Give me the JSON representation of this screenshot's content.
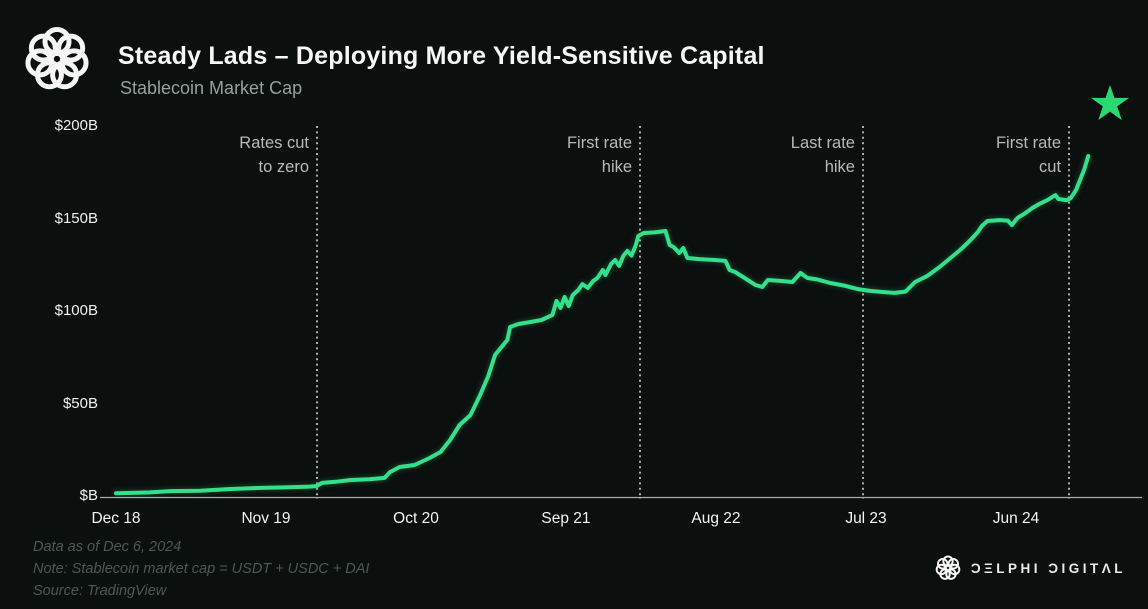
{
  "header": {
    "title": "Steady Lads – Deploying More Yield-Sensitive Capital",
    "subtitle": "Stablecoin Market Cap"
  },
  "footer": {
    "data_as_of": "Data as of Dec 6, 2024",
    "note": "Note: Stablecoin market cap = USDT + USDC + DAI",
    "source": "Source: TradingView"
  },
  "brand": {
    "name": "DELPHI DIGITAL",
    "wordmark_display": "ƆΞLPHI ƆIGITΛL"
  },
  "colors": {
    "background": "#0b0f0d",
    "line": "#35e08c",
    "star": "#2bd973",
    "event_line": "#d2d5d3",
    "baseline": "#a9ada9",
    "title": "#f6f7f6",
    "subtitle": "#97a09b",
    "axis_label": "#eff1ef",
    "annotation": "#b5bab8",
    "footer_text": "#4f5954",
    "logo": "#f4f5f4"
  },
  "chart_data": {
    "type": "line",
    "title": "Steady Lads – Deploying More Yield-Sensitive Capital",
    "subtitle": "Stablecoin Market Cap",
    "unit": "$B",
    "x_unit": "months since Dec 2018",
    "x_ticks": [
      "Dec 18",
      "Nov 19",
      "Oct 20",
      "Sep 21",
      "Aug 22",
      "Jul 23",
      "Jun 24"
    ],
    "y_ticks": [
      "$200B",
      "$150B",
      "$100B",
      "$50B",
      "$B"
    ],
    "y_tick_values": [
      200,
      150,
      100,
      50,
      0
    ],
    "ylim": [
      0,
      200
    ],
    "grid": false,
    "legend": false,
    "events": [
      {
        "id": "rates-cut-to-zero",
        "line1": "Rates cut",
        "line2": "to zero",
        "t": 14.74,
        "date": "Mar 2020"
      },
      {
        "id": "first-rate-hike",
        "line1": "First rate",
        "line2": "hike",
        "t": 38.43,
        "date": "Mar 2022"
      },
      {
        "id": "last-rate-hike",
        "line1": "Last rate",
        "line2": "hike",
        "t": 54.78,
        "date": "Jul 2023"
      },
      {
        "id": "first-rate-cut",
        "line1": "First rate",
        "line2": "cut",
        "t": 69.89,
        "date": "Sep 2024"
      }
    ],
    "series": [
      {
        "name": "Stablecoin Market Cap (USDT + USDC + DAI)",
        "color": "#35e08c",
        "points": [
          [
            0,
            2
          ],
          [
            2.5,
            2.5
          ],
          [
            4,
            3.2
          ],
          [
            6.2,
            3.4
          ],
          [
            8.4,
            4.3
          ],
          [
            10.6,
            4.9
          ],
          [
            12.4,
            5.2
          ],
          [
            14.2,
            5.6
          ],
          [
            14.7,
            5.9
          ],
          [
            15.1,
            7.6
          ],
          [
            16.1,
            8.2
          ],
          [
            17.2,
            9.2
          ],
          [
            18.6,
            9.6
          ],
          [
            19.7,
            10.3
          ],
          [
            20.1,
            13.5
          ],
          [
            20.8,
            16.2
          ],
          [
            21.9,
            17.3
          ],
          [
            23,
            21.1
          ],
          [
            23.8,
            24.3
          ],
          [
            24.5,
            30.8
          ],
          [
            25.2,
            38.9
          ],
          [
            26,
            44.3
          ],
          [
            26.7,
            55.1
          ],
          [
            27.3,
            65.4
          ],
          [
            27.8,
            76.8
          ],
          [
            28.4,
            82.2
          ],
          [
            28.7,
            84.9
          ],
          [
            28.9,
            91.9
          ],
          [
            29.5,
            93.5
          ],
          [
            30.4,
            94.6
          ],
          [
            31.2,
            95.7
          ],
          [
            32,
            98.4
          ],
          [
            32.3,
            106
          ],
          [
            32.6,
            102.2
          ],
          [
            32.9,
            108.1
          ],
          [
            33.2,
            103.2
          ],
          [
            33.5,
            109.2
          ],
          [
            33.9,
            111.9
          ],
          [
            34.2,
            115.1
          ],
          [
            34.6,
            113
          ],
          [
            35,
            116.8
          ],
          [
            35.3,
            118.4
          ],
          [
            35.7,
            122.7
          ],
          [
            35.9,
            120
          ],
          [
            36.3,
            125.9
          ],
          [
            36.6,
            128.1
          ],
          [
            36.9,
            124.9
          ],
          [
            37.2,
            130.3
          ],
          [
            37.5,
            133
          ],
          [
            37.8,
            130.5
          ],
          [
            38.1,
            135.7
          ],
          [
            38.3,
            141.1
          ],
          [
            38.7,
            142.7
          ],
          [
            39.5,
            143
          ],
          [
            40.3,
            143.8
          ],
          [
            40.6,
            136.2
          ],
          [
            40.9,
            135.1
          ],
          [
            41.3,
            131.9
          ],
          [
            41.6,
            134.6
          ],
          [
            41.9,
            129.2
          ],
          [
            42.8,
            128.6
          ],
          [
            43.9,
            128.1
          ],
          [
            44.7,
            127.6
          ],
          [
            45,
            122.7
          ],
          [
            45.4,
            121.6
          ],
          [
            46.1,
            118.4
          ],
          [
            46.9,
            114.6
          ],
          [
            47.4,
            113.5
          ],
          [
            47.8,
            117.3
          ],
          [
            48.7,
            116.8
          ],
          [
            49.6,
            116.2
          ],
          [
            50.2,
            121.1
          ],
          [
            50.7,
            118.4
          ],
          [
            51.3,
            117.8
          ],
          [
            52.4,
            115.7
          ],
          [
            53.5,
            114.1
          ],
          [
            54.4,
            112.4
          ],
          [
            55.3,
            111.4
          ],
          [
            56.2,
            110.8
          ],
          [
            57.1,
            110.3
          ],
          [
            57.9,
            111
          ],
          [
            58.6,
            116.2
          ],
          [
            59.5,
            119.5
          ],
          [
            60.4,
            124.3
          ],
          [
            61.2,
            129.2
          ],
          [
            61.9,
            133.5
          ],
          [
            62.6,
            138.4
          ],
          [
            63.2,
            143.2
          ],
          [
            63.5,
            146.5
          ],
          [
            63.9,
            149.2
          ],
          [
            64.8,
            149.7
          ],
          [
            65.4,
            149.4
          ],
          [
            65.7,
            147
          ],
          [
            66.1,
            150.8
          ],
          [
            66.6,
            153
          ],
          [
            67.2,
            156.2
          ],
          [
            67.7,
            158.4
          ],
          [
            68.3,
            160.5
          ],
          [
            68.9,
            163.2
          ],
          [
            69.1,
            161.1
          ],
          [
            69.7,
            160.5
          ],
          [
            70,
            161.4
          ],
          [
            70.4,
            165.9
          ],
          [
            70.7,
            171.4
          ],
          [
            71,
            177
          ],
          [
            71.3,
            184.3
          ]
        ]
      }
    ]
  }
}
